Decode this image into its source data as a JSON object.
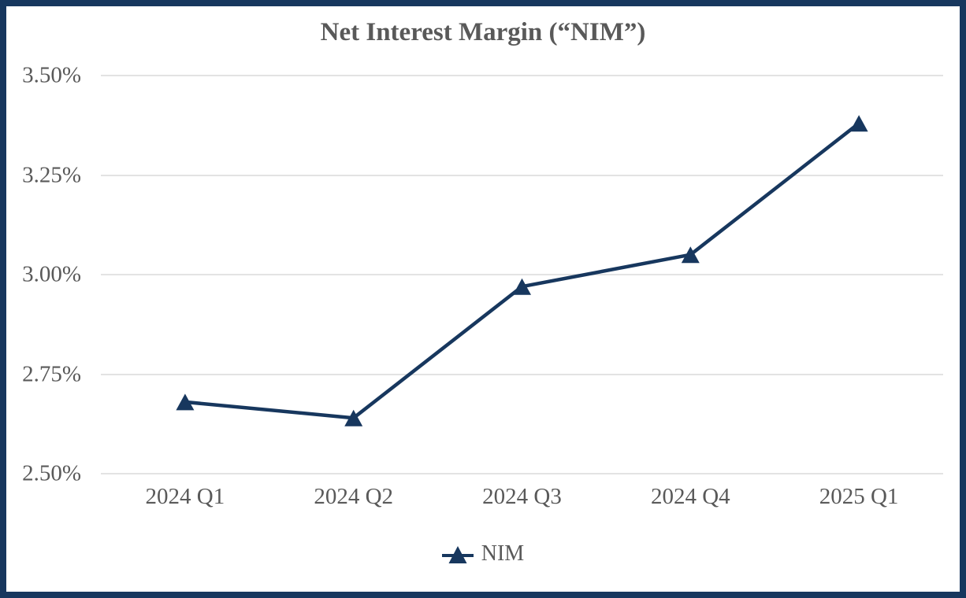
{
  "title": "Net Interest Margin (“NIM”)",
  "colors": {
    "line": "#17375E",
    "border": "#17375E",
    "text": "#595959",
    "gridline": "#E3E3E3",
    "background": "#FFFFFF"
  },
  "legend": {
    "label": "NIM"
  },
  "chart_data": {
    "type": "line",
    "title": "Net Interest Margin (“NIM”)",
    "categories": [
      "2024 Q1",
      "2024 Q2",
      "2024 Q3",
      "2024 Q4",
      "2025 Q1"
    ],
    "series": [
      {
        "name": "NIM",
        "values": [
          2.68,
          2.64,
          2.97,
          3.05,
          3.38
        ]
      }
    ],
    "value_format": "percent",
    "xlabel": "",
    "ylabel": "",
    "ylim": [
      2.5,
      3.5
    ],
    "ytick_step": 0.25,
    "ytick_labels": [
      "2.50%",
      "2.75%",
      "3.00%",
      "3.25%",
      "3.50%"
    ],
    "grid": true,
    "marker": "triangle",
    "legend_position": "bottom"
  }
}
